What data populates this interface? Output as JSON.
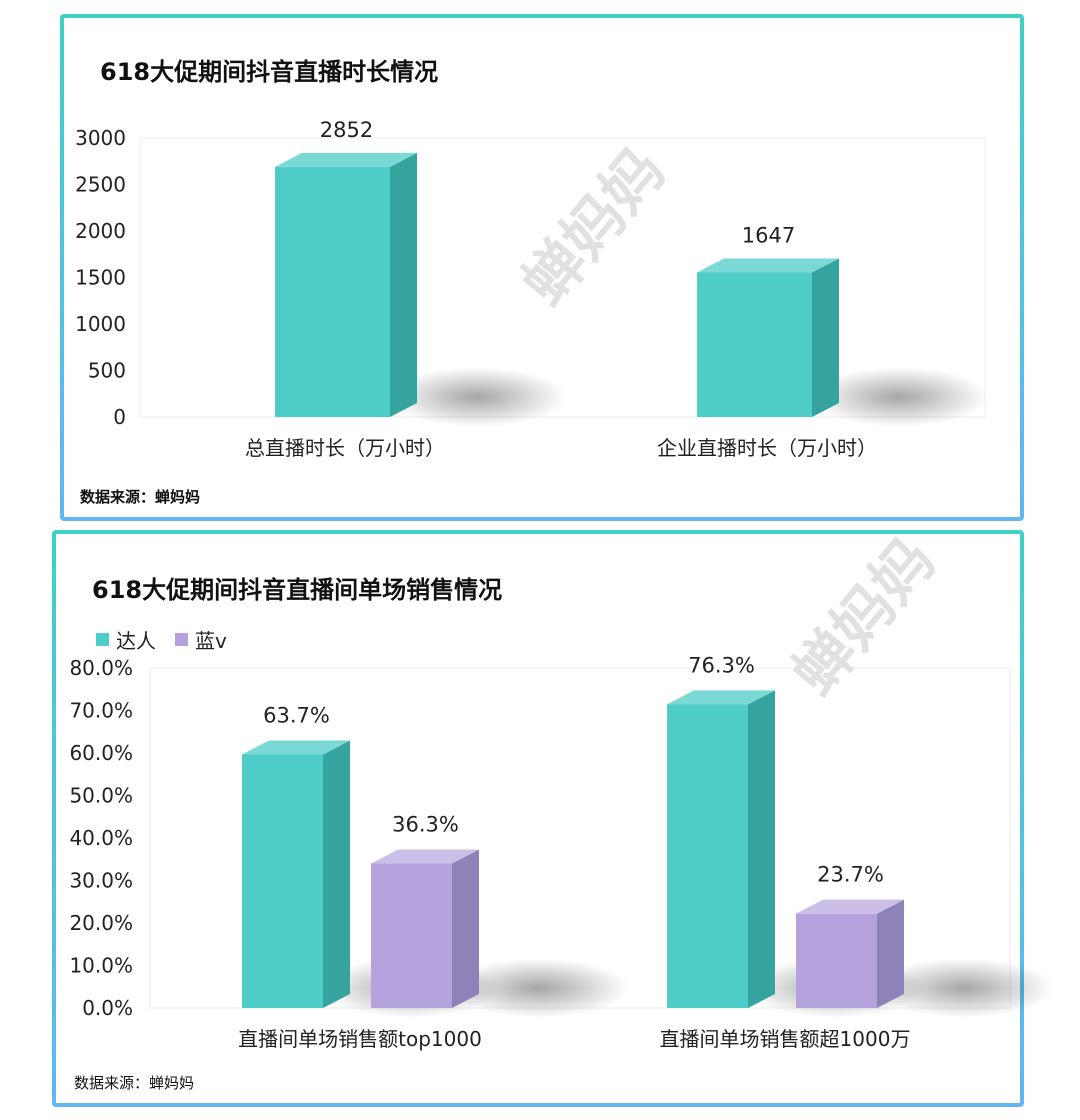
{
  "watermark": "蝉妈妈",
  "colors": {
    "teal": "#4ecdc8",
    "teal_side": "#35a39e",
    "teal_top": "#7ad9d5",
    "purple": "#b3a2dc",
    "purple_side": "#8e82b8",
    "purple_top": "#cbbfe8"
  },
  "chart_data": [
    {
      "type": "bar",
      "title": "618大促期间抖音直播时长情况",
      "categories": [
        "总直播时长（万小时）",
        "企业直播时长（万小时）"
      ],
      "values": [
        2852,
        1647
      ],
      "value_labels": [
        "2852",
        "1647"
      ],
      "ylim": [
        0,
        3000
      ],
      "yticks": [
        "0",
        "500",
        "1000",
        "1500",
        "2000",
        "2500",
        "3000"
      ],
      "grid": false,
      "style": "3d",
      "source": "数据来源：蝉妈妈"
    },
    {
      "type": "bar",
      "title": "618大促期间抖音直播间单场销售情况",
      "categories": [
        "直播间单场销售额top1000",
        "直播间单场销售额超1000万"
      ],
      "series": [
        {
          "name": "达人",
          "values": [
            63.7,
            76.3
          ],
          "labels": [
            "63.7%",
            "76.3%"
          ]
        },
        {
          "name": "蓝v",
          "values": [
            36.3,
            23.7
          ],
          "labels": [
            "36.3%",
            "23.7%"
          ]
        }
      ],
      "ylim": [
        0,
        80
      ],
      "yticks": [
        "0.0%",
        "10.0%",
        "20.0%",
        "30.0%",
        "40.0%",
        "50.0%",
        "60.0%",
        "70.0%",
        "80.0%"
      ],
      "legend": "top-left",
      "grid": false,
      "style": "3d",
      "source": "数据来源：蝉妈妈"
    }
  ]
}
